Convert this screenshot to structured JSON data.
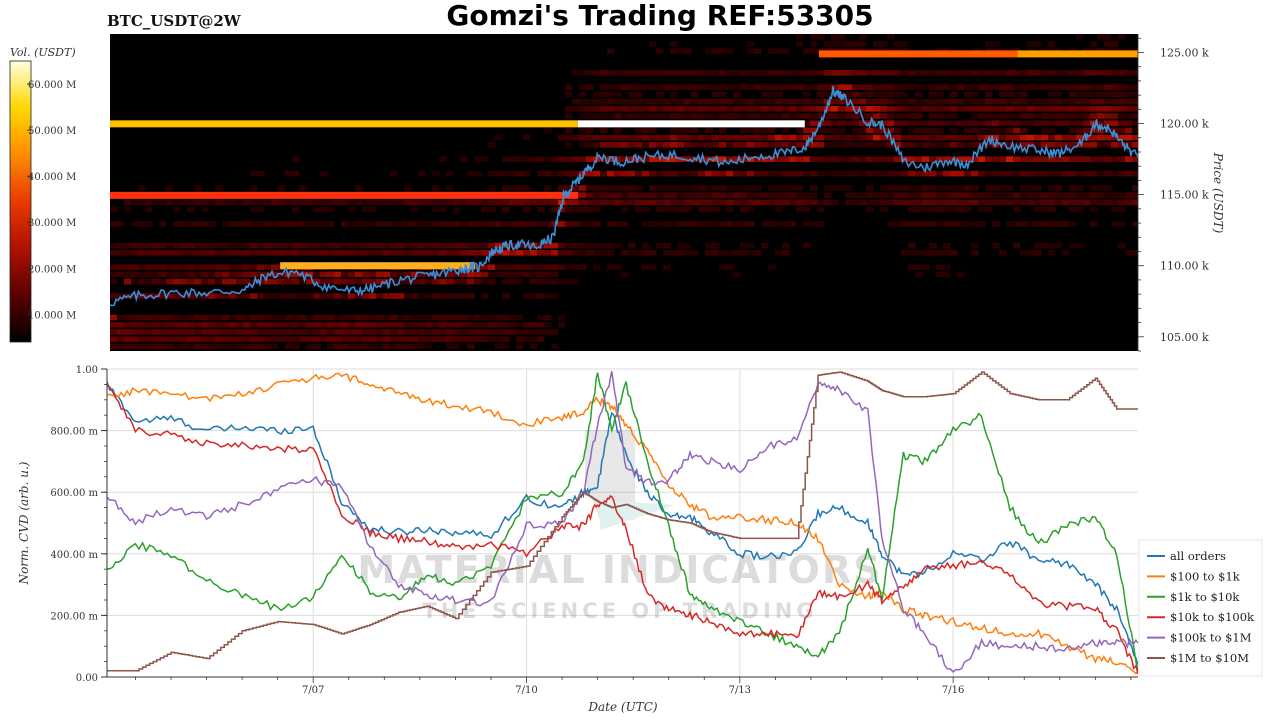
{
  "header": {
    "symbol": "BTC_USDT@2W",
    "title": "Gomzi's Trading REF:53305"
  },
  "watermark": {
    "line1": "MATERIAL INDICATORS",
    "line2": "THE SCIENCE OF TRADING"
  },
  "colors": {
    "heatmap_background": "#000000",
    "price_line": "#3a8fd6",
    "all_orders": "#1f77b4",
    "100_to_1k": "#ff7f0e",
    "1k_to_10k": "#2ca02c",
    "10k_to_100k": "#d62728",
    "100k_to_1m": "#9467bd",
    "1m_to_10m": "#8c564b",
    "grid": "#dddddd"
  },
  "chart_data": [
    {
      "type": "heatmap",
      "colorbar": {
        "label": "Vol. (USDT)",
        "ticks": [
          "10.000 M",
          "20.000 M",
          "30.000 M",
          "40.000 M",
          "50.000 M",
          "60.000 M"
        ],
        "tick_values": [
          10,
          20,
          30,
          40,
          50,
          60
        ],
        "range": [
          4,
          65
        ],
        "colors": [
          "#000000",
          "#5a0000",
          "#b01000",
          "#e83a00",
          "#ff8c00",
          "#ffd800",
          "#ffffe0"
        ]
      },
      "ylabel": "Price (USDT)",
      "yticks": [
        "105.00 k",
        "110.00 k",
        "115.00 k",
        "120.00 k",
        "125.00 k"
      ],
      "ytick_values": [
        105,
        110,
        115,
        120,
        125
      ],
      "ylim": [
        104,
        126.3
      ],
      "xlim": [
        4.1,
        18.6
      ],
      "walls": [
        {
          "price": 119.98,
          "x0": 4.1,
          "x1": 10.7,
          "color": "#ffc000"
        },
        {
          "price": 119.98,
          "x0": 10.7,
          "x1": 13.9,
          "color": "#ffffff"
        },
        {
          "price": 114.95,
          "x0": 4.1,
          "x1": 10.7,
          "color": "#ff3010"
        },
        {
          "price": 110.0,
          "x0": 6.5,
          "x1": 9.25,
          "color": "#ffb020"
        },
        {
          "price": 124.9,
          "x0": 14.1,
          "x1": 16.9,
          "color": "#ff5a00"
        },
        {
          "price": 124.9,
          "x0": 16.9,
          "x1": 18.6,
          "color": "#ffa000"
        }
      ],
      "price": {
        "name": "",
        "x": [
          4.1,
          4.5,
          5.0,
          5.5,
          6.0,
          6.3,
          6.7,
          7.1,
          7.5,
          7.8,
          8.2,
          8.6,
          8.9,
          9.1,
          9.3,
          9.5,
          9.7,
          9.9,
          10.1,
          10.35,
          10.5,
          10.65,
          10.8,
          11.0,
          11.3,
          11.6,
          12.0,
          12.4,
          12.8,
          13.2,
          13.6,
          13.9,
          14.1,
          14.3,
          14.5,
          14.8,
          15.0,
          15.3,
          15.6,
          15.9,
          16.2,
          16.5,
          16.8,
          17.2,
          17.5,
          17.8,
          18.0,
          18.2,
          18.4,
          18.6
        ],
        "y": [
          107.4,
          107.9,
          108.1,
          108.1,
          108.3,
          109.3,
          109.6,
          108.6,
          108.2,
          108.4,
          109.0,
          109.3,
          109.6,
          109.8,
          109.9,
          111.0,
          111.4,
          111.5,
          111.3,
          112.0,
          114.9,
          115.7,
          116.6,
          117.7,
          117.3,
          117.6,
          117.8,
          117.6,
          117.2,
          117.7,
          117.9,
          118.3,
          119.8,
          122.3,
          121.6,
          120.1,
          119.9,
          117.3,
          116.9,
          117.4,
          117.2,
          118.9,
          118.4,
          118.1,
          117.9,
          118.6,
          120.0,
          119.6,
          118.5,
          117.6
        ]
      }
    },
    {
      "type": "line",
      "xlabel": "Date (UTC)",
      "ylabel": "Norm. CVD (arb. u.)",
      "xticks": [
        "7/07",
        "7/10",
        "7/13",
        "7/16"
      ],
      "xtick_values": [
        7,
        10,
        13,
        16
      ],
      "xlim": [
        4.1,
        18.6
      ],
      "yticks": [
        "0.00",
        "200.00 m",
        "400.00 m",
        "600.00 m",
        "800.00 m",
        "1.00"
      ],
      "ytick_values": [
        0,
        0.2,
        0.4,
        0.6,
        0.8,
        1.0
      ],
      "ylim": [
        0,
        1.0
      ],
      "grid": true,
      "legend_position": "right",
      "x": [
        4.1,
        4.5,
        5.0,
        5.5,
        6.0,
        6.5,
        7.0,
        7.4,
        7.8,
        8.2,
        8.6,
        9.0,
        9.5,
        10.0,
        10.5,
        10.8,
        11.0,
        11.2,
        11.4,
        11.7,
        12.0,
        12.3,
        12.6,
        13.0,
        13.4,
        13.8,
        14.1,
        14.4,
        14.8,
        15.0,
        15.3,
        15.6,
        16.0,
        16.4,
        16.8,
        17.2,
        17.6,
        18.0,
        18.3,
        18.6
      ],
      "series": [
        {
          "name": "all orders",
          "color_key": "all_orders",
          "values": [
            0.95,
            0.83,
            0.84,
            0.8,
            0.81,
            0.8,
            0.81,
            0.57,
            0.48,
            0.47,
            0.48,
            0.47,
            0.46,
            0.58,
            0.55,
            0.6,
            0.62,
            0.86,
            0.72,
            0.6,
            0.52,
            0.52,
            0.47,
            0.4,
            0.39,
            0.4,
            0.53,
            0.55,
            0.5,
            0.4,
            0.33,
            0.34,
            0.4,
            0.38,
            0.44,
            0.38,
            0.37,
            0.3,
            0.22,
            0.04
          ]
        },
        {
          "name": "$100 to $1k",
          "color_key": "100_to_1k",
          "values": [
            0.91,
            0.93,
            0.92,
            0.9,
            0.92,
            0.95,
            0.97,
            0.98,
            0.95,
            0.92,
            0.9,
            0.88,
            0.86,
            0.82,
            0.84,
            0.86,
            0.9,
            0.88,
            0.82,
            0.73,
            0.62,
            0.56,
            0.52,
            0.52,
            0.51,
            0.5,
            0.45,
            0.3,
            0.26,
            0.28,
            0.22,
            0.2,
            0.18,
            0.16,
            0.14,
            0.14,
            0.1,
            0.06,
            0.05,
            0.02
          ]
        },
        {
          "name": "$1k to $10k",
          "color_key": "1k_to_10k",
          "values": [
            0.35,
            0.43,
            0.4,
            0.31,
            0.27,
            0.22,
            0.26,
            0.4,
            0.28,
            0.25,
            0.33,
            0.3,
            0.36,
            0.58,
            0.6,
            0.7,
            0.99,
            0.8,
            0.95,
            0.7,
            0.49,
            0.27,
            0.22,
            0.18,
            0.14,
            0.1,
            0.07,
            0.14,
            0.42,
            0.25,
            0.72,
            0.7,
            0.8,
            0.85,
            0.55,
            0.43,
            0.49,
            0.52,
            0.4,
            0.02
          ]
        },
        {
          "name": "$10k to $100k",
          "color_key": "10k_to_100k",
          "values": [
            0.95,
            0.8,
            0.79,
            0.76,
            0.75,
            0.74,
            0.74,
            0.53,
            0.47,
            0.45,
            0.44,
            0.42,
            0.43,
            0.4,
            0.49,
            0.49,
            0.56,
            0.58,
            0.48,
            0.27,
            0.22,
            0.2,
            0.18,
            0.14,
            0.14,
            0.13,
            0.27,
            0.26,
            0.3,
            0.25,
            0.29,
            0.35,
            0.36,
            0.38,
            0.33,
            0.24,
            0.23,
            0.22,
            0.15,
            0.01
          ]
        },
        {
          "name": "$100k to $1M",
          "color_key": "100k_to_1m",
          "values": [
            0.59,
            0.5,
            0.55,
            0.52,
            0.56,
            0.61,
            0.64,
            0.62,
            0.42,
            0.3,
            0.27,
            0.25,
            0.24,
            0.49,
            0.5,
            0.6,
            0.82,
            0.99,
            0.68,
            0.63,
            0.64,
            0.72,
            0.7,
            0.67,
            0.75,
            0.77,
            0.95,
            0.93,
            0.86,
            0.45,
            0.22,
            0.14,
            0.01,
            0.11,
            0.1,
            0.1,
            0.09,
            0.11,
            0.11,
            0.11
          ]
        },
        {
          "name": "$1M to $10M",
          "color_key": "1m_to_10m",
          "values": [
            0.02,
            0.02,
            0.08,
            0.06,
            0.15,
            0.18,
            0.17,
            0.14,
            0.17,
            0.21,
            0.23,
            0.19,
            0.34,
            0.36,
            0.52,
            0.6,
            0.57,
            0.55,
            0.56,
            0.53,
            0.51,
            0.5,
            0.47,
            0.45,
            0.45,
            0.45,
            0.98,
            0.99,
            0.96,
            0.93,
            0.91,
            0.91,
            0.92,
            0.99,
            0.92,
            0.9,
            0.9,
            0.97,
            0.87,
            0.87
          ]
        }
      ]
    }
  ]
}
